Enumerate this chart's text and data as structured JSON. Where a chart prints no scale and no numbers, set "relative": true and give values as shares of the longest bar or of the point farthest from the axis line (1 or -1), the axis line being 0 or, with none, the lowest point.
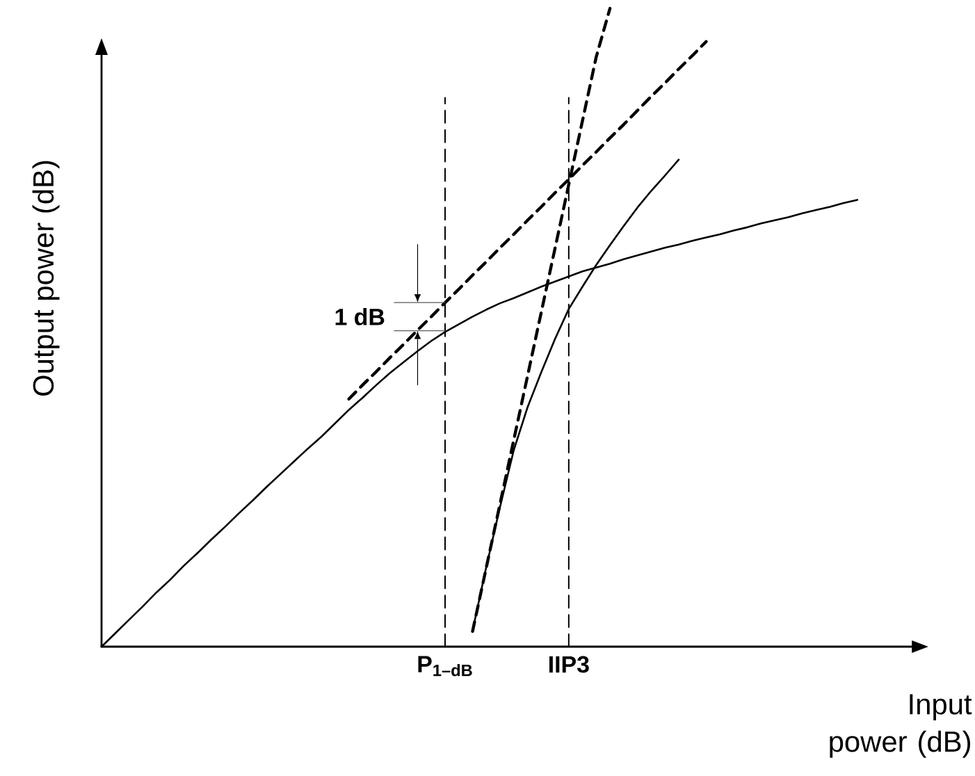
{
  "chart_data": {
    "type": "line",
    "relative": true,
    "xlabel": "Input power (dB)",
    "ylabel": "Output power (dB)",
    "annotations": [
      "1 dB"
    ],
    "marker": "none",
    "categories": [
      null,
      null,
      null,
      null,
      null,
      null,
      null,
      null,
      null,
      null,
      null,
      null,
      null,
      null,
      null,
      null,
      null,
      null,
      null,
      null,
      null,
      null,
      null,
      null,
      null,
      "P$_{1–dB}$",
      null,
      null,
      null,
      null,
      null,
      null,
      null,
      null,
      "IIP3",
      null,
      null,
      null,
      null,
      null,
      null,
      null,
      null,
      null,
      null,
      null,
      null,
      null,
      null,
      null,
      null,
      null,
      null,
      null,
      null,
      null
    ],
    "ref_lines": [
      {
        "axis": "x",
        "value": "P$_{1–dB}$",
        "color": "#000000",
        "line_style": "dashed"
      },
      {
        "axis": "x",
        "value": "IIP3",
        "color": "#000000",
        "line_style": "dashed"
      }
    ],
    "series": [
      {
        "color": "#000000",
        "line_style": "solid",
        "values": [
          0,
          0.021,
          0.042,
          0.063,
          0.085,
          0.105,
          0.127,
          0.147,
          0.168,
          0.188,
          0.209,
          0.229,
          0.25,
          0.27,
          0.29,
          0.31,
          0.329,
          0.35,
          0.371,
          0.39,
          0.41,
          0.429,
          0.446,
          0.463,
          0.479,
          0.493,
          0.505,
          0.517,
          0.528,
          0.538,
          0.546,
          0.555,
          0.564,
          0.572,
          0.58,
          0.588,
          0.594,
          0.6,
          0.607,
          0.613,
          0.619,
          0.625,
          0.63,
          0.636,
          0.641,
          0.646,
          0.652,
          0.657,
          0.663,
          0.668,
          0.673,
          0.679,
          0.684,
          0.689,
          0.695,
          0.7
        ]
      },
      {
        "color": "#000000",
        "line_style": "dashed",
        "values": [
          null,
          null,
          null,
          null,
          null,
          null,
          null,
          null,
          null,
          null,
          null,
          null,
          null,
          null,
          null,
          null,
          null,
          null,
          0.388,
          0.41,
          0.431,
          0.453,
          0.474,
          0.496,
          0.517,
          0.539,
          0.56,
          0.582,
          0.603,
          0.625,
          0.646,
          0.668,
          0.689,
          0.711,
          0.732,
          0.754,
          0.775,
          0.797,
          0.818,
          0.84,
          0.862,
          0.883,
          0.905,
          0.926,
          0.948,
          null,
          null,
          null,
          null,
          null,
          null,
          null,
          null,
          null,
          null,
          null
        ]
      },
      {
        "color": "#000000",
        "line_style": "solid",
        "values": [
          null,
          null,
          null,
          null,
          null,
          null,
          null,
          null,
          null,
          null,
          null,
          null,
          null,
          null,
          null,
          null,
          null,
          null,
          null,
          null,
          null,
          null,
          null,
          null,
          null,
          null,
          null,
          0.025,
          0.125,
          0.219,
          0.308,
          0.375,
          0.43,
          0.482,
          0.529,
          0.564,
          0.598,
          0.629,
          0.659,
          0.688,
          0.714,
          0.738,
          0.763,
          null,
          null,
          null,
          null,
          null,
          null,
          null,
          null,
          null,
          null,
          null,
          null,
          null
        ]
      },
      {
        "color": "#000000",
        "line_style": "dashed",
        "values": [
          null,
          null,
          null,
          null,
          null,
          null,
          null,
          null,
          null,
          null,
          null,
          null,
          null,
          null,
          null,
          null,
          null,
          null,
          null,
          null,
          null,
          null,
          null,
          null,
          null,
          null,
          null,
          0.024,
          0.124,
          0.224,
          0.324,
          0.424,
          0.524,
          0.624,
          0.724,
          0.824,
          0.924,
          1,
          null,
          null,
          null,
          null,
          null,
          null,
          null,
          null,
          null,
          null,
          null,
          null,
          null,
          null,
          null,
          null,
          null,
          null
        ]
      }
    ]
  }
}
